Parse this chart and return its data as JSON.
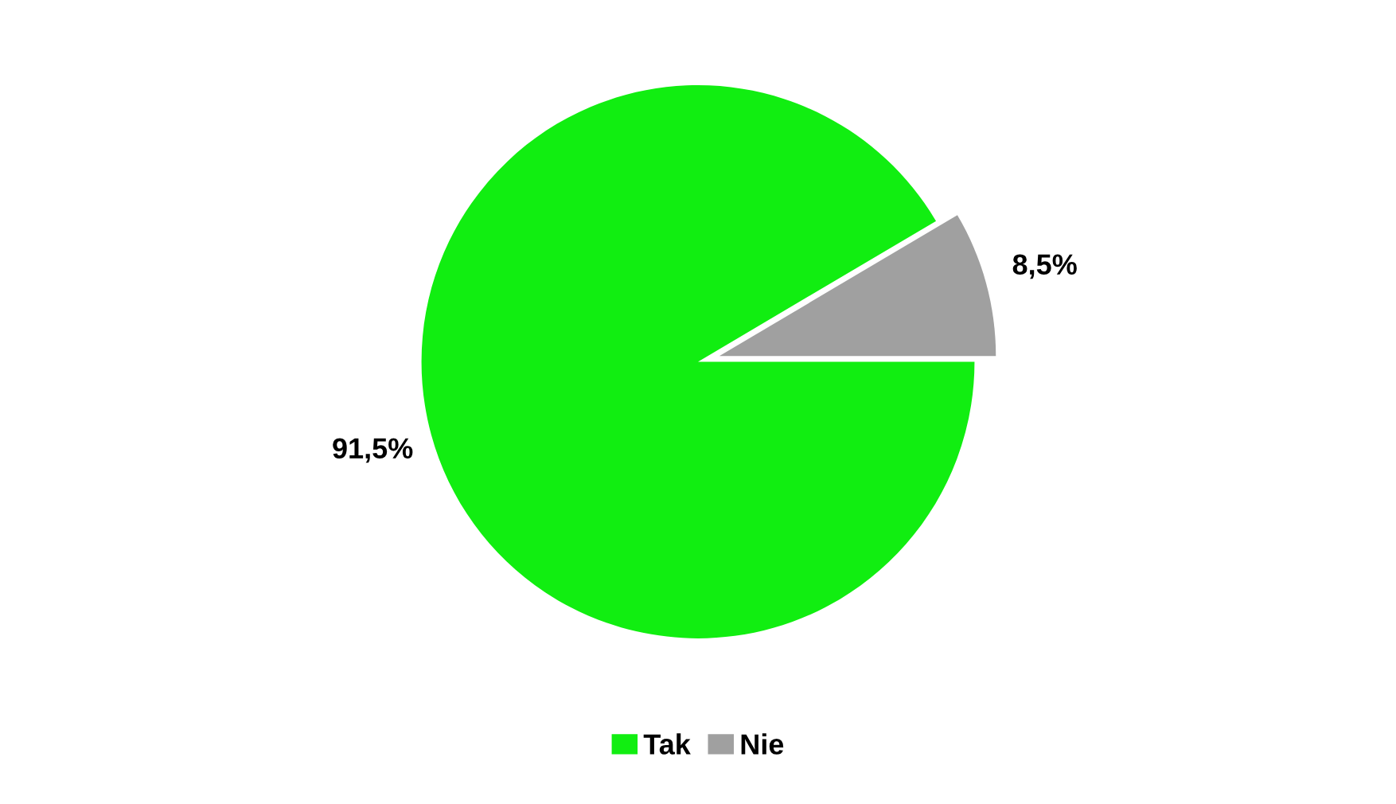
{
  "chart_data": {
    "type": "pie",
    "categories": [
      "Tak",
      "Nie"
    ],
    "values": [
      91.5,
      8.5
    ],
    "colors": [
      "#11ee11",
      "#a0a0a0"
    ],
    "value_labels": [
      "91,5%",
      "8,5%"
    ],
    "legend": "bottom"
  }
}
